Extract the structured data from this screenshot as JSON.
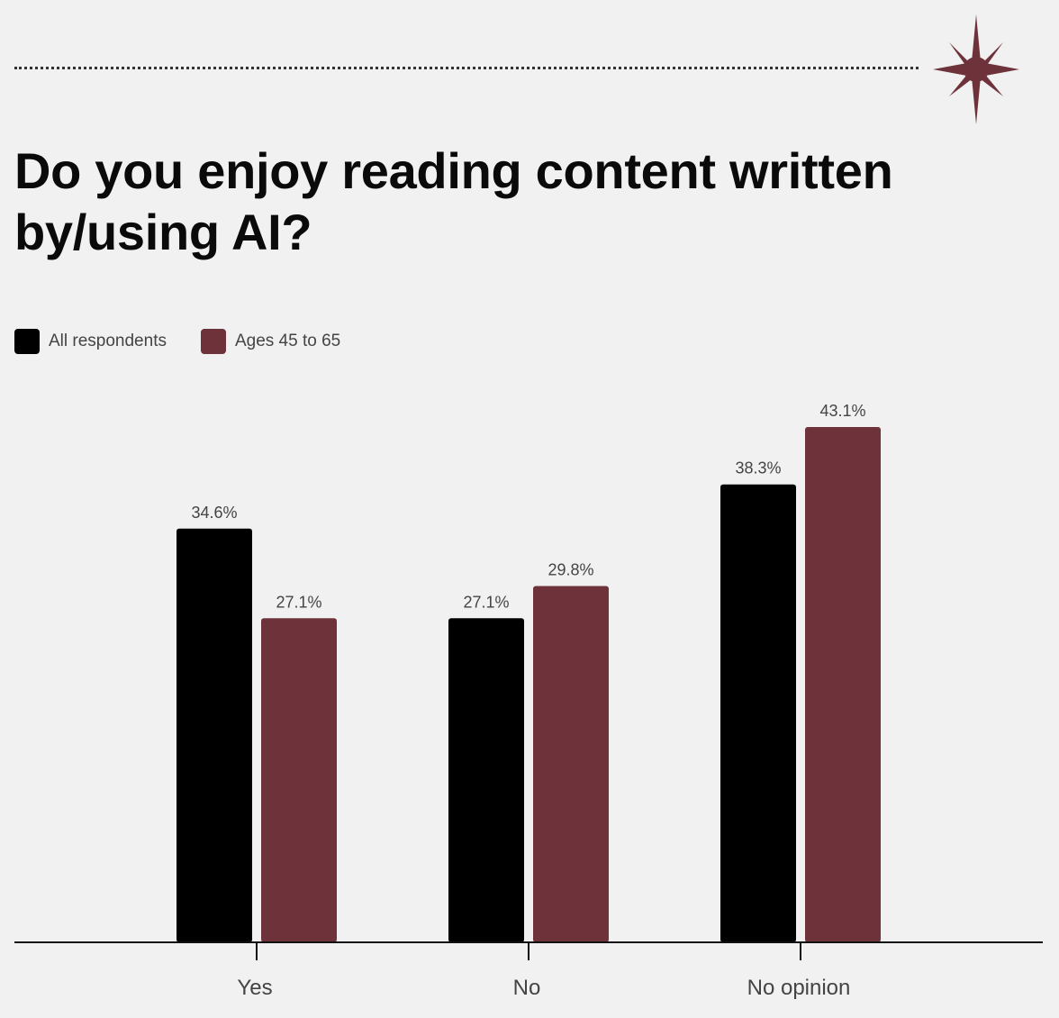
{
  "title": "Do you enjoy reading content written by/using AI?",
  "icons": {
    "decoration": "sparkle-star-icon"
  },
  "colors": {
    "background": "#f0f1f0",
    "all_respondents": "#000000",
    "ages_45_65": "#6e323a",
    "axis": "#111111",
    "label_text": "#444444"
  },
  "legend": {
    "items": [
      {
        "label": "All respondents",
        "color": "#000000"
      },
      {
        "label": "Ages 45 to 65",
        "color": "#6e323a"
      }
    ]
  },
  "chart_data": {
    "type": "bar",
    "title": "Do you enjoy reading content written by/using AI?",
    "categories": [
      "Yes",
      "No",
      "No opinion"
    ],
    "series": [
      {
        "name": "All respondents",
        "values": [
          34.6,
          27.1,
          38.3
        ],
        "labels": [
          "34.6%",
          "27.1%",
          "38.3%"
        ],
        "color": "#000000"
      },
      {
        "name": "Ages 45 to 65",
        "values": [
          27.1,
          29.8,
          43.1
        ],
        "labels": [
          "27.1%",
          "29.8%",
          "43.1%"
        ],
        "color": "#6e323a"
      }
    ],
    "xlabel": "",
    "ylabel": "",
    "ylim": [
      0,
      43.1
    ],
    "unit": "%",
    "grid": false,
    "legend_position": "top-left"
  }
}
